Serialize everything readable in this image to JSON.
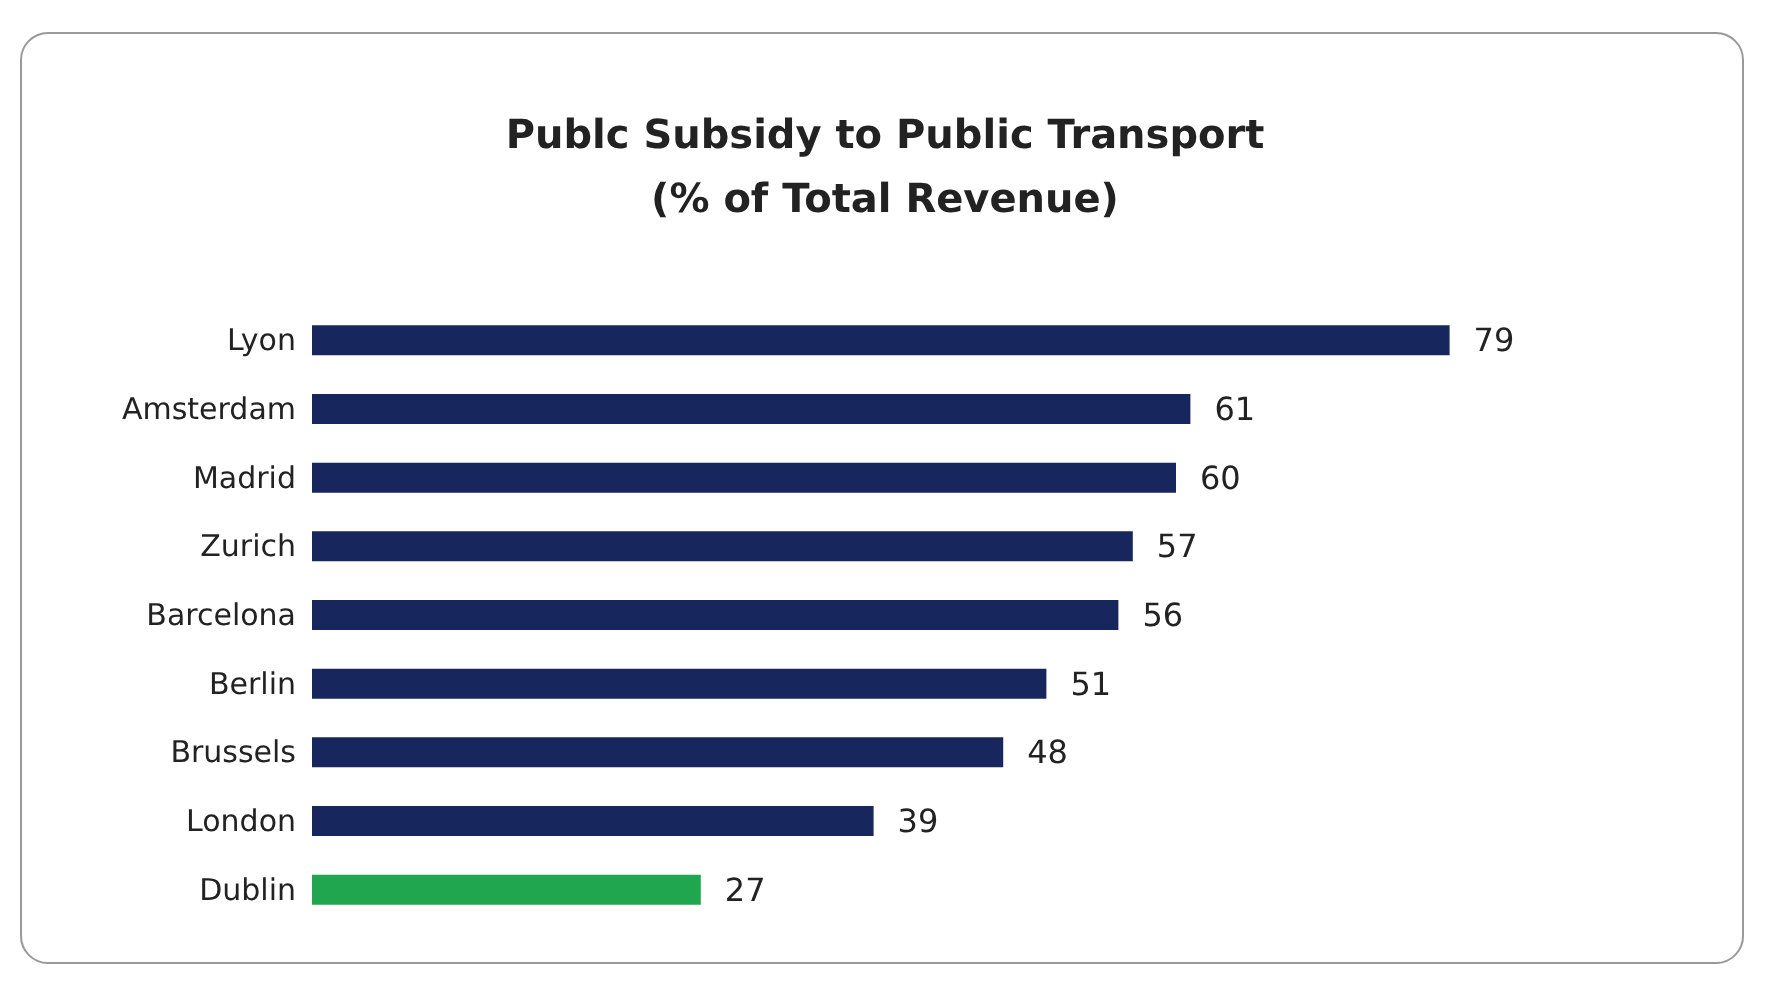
{
  "chart_data": {
    "type": "bar",
    "orientation": "horizontal",
    "title": "Publc Subsidy to Public Transport\n(% of Total Revenue)",
    "categories": [
      "Lyon",
      "Amsterdam",
      "Madrid",
      "Zurich",
      "Barcelona",
      "Berlin",
      "Brussels",
      "London",
      "Dublin"
    ],
    "values": [
      79,
      61,
      60,
      57,
      56,
      51,
      48,
      39,
      27
    ],
    "colors": [
      "#17275e",
      "#17275e",
      "#17275e",
      "#17275e",
      "#17275e",
      "#17275e",
      "#17275e",
      "#17275e",
      "#21a650"
    ],
    "data_labels": true,
    "tick_labels": "y"
  }
}
